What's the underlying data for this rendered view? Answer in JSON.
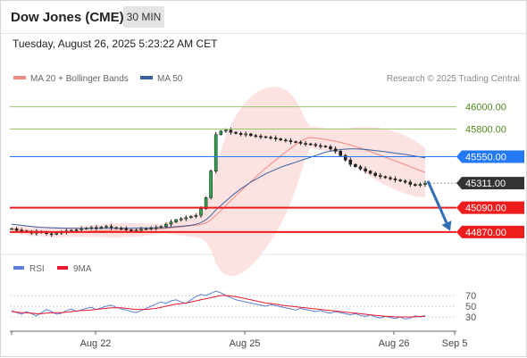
{
  "header": {
    "title": "Dow Jones (CME)",
    "timeframe": "30 MIN",
    "datetime": "Tuesday, August 26, 2025 5:23:22 AM CET"
  },
  "legend": {
    "items": [
      {
        "label": "MA 20 + Bollinger Bands",
        "color": "#f08a80"
      },
      {
        "label": "MA 50",
        "color": "#3a5fa0"
      }
    ],
    "credit": "Research © 2025 Trading Central"
  },
  "chart_data": [
    {
      "type": "candlestick",
      "title": "",
      "ylim": [
        44700,
        46150
      ],
      "x_ticks": [
        "Aug 22",
        "Aug 25",
        "Aug 26",
        "Sep 5"
      ],
      "levels": [
        {
          "value": 46000,
          "label": "46000.00",
          "style": "green-line",
          "color": "#9bc66a"
        },
        {
          "value": 45800,
          "label": "45800.00",
          "style": "green-line",
          "color": "#9bc66a"
        },
        {
          "value": 45550,
          "label": "45550.00",
          "style": "blue-badge",
          "color": "#2378f5"
        },
        {
          "value": 45311,
          "label": "45311.00",
          "style": "dark-badge",
          "color": "#333333"
        },
        {
          "value": 45090,
          "label": "45090.00",
          "style": "red-badge",
          "color": "#ee1c1c"
        },
        {
          "value": 44870,
          "label": "44870.00",
          "style": "red-badge",
          "color": "#ee1c1c"
        }
      ],
      "close_series": [
        44900,
        44885,
        44880,
        44870,
        44860,
        44875,
        44865,
        44855,
        44850,
        44860,
        44870,
        44880,
        44885,
        44890,
        44900,
        44905,
        44910,
        44905,
        44915,
        44920,
        44910,
        44905,
        44900,
        44890,
        44880,
        44885,
        44895,
        44900,
        44905,
        44910,
        44920,
        44940,
        44960,
        44980,
        44990,
        45000,
        45010,
        45020,
        45080,
        45180,
        45420,
        45750,
        45780,
        45790,
        45770,
        45760,
        45750,
        45755,
        45740,
        45735,
        45730,
        45725,
        45720,
        45710,
        45700,
        45695,
        45685,
        45680,
        45670,
        45665,
        45660,
        45650,
        45645,
        45640,
        45620,
        45600,
        45560,
        45520,
        45480,
        45460,
        45440,
        45420,
        45400,
        45380,
        45370,
        45360,
        45350,
        45340,
        45330,
        45320,
        45300,
        45290,
        45300,
        45311
      ],
      "ma50": [
        44940,
        44935,
        44930,
        44925,
        44920,
        44915,
        44912,
        44910,
        44908,
        44906,
        44905,
        44904,
        44903,
        44903,
        44902,
        44902,
        44902,
        44902,
        44902,
        44903,
        44903,
        44904,
        44904,
        44905,
        44905,
        44906,
        44906,
        44907,
        44908,
        44909,
        44910,
        44912,
        44915,
        44918,
        44922,
        44926,
        44932,
        44940,
        44955,
        44980,
        45020,
        45070,
        45110,
        45150,
        45190,
        45225,
        45260,
        45290,
        45320,
        45345,
        45370,
        45395,
        45415,
        45435,
        45455,
        45470,
        45485,
        45500,
        45515,
        45530,
        45545,
        45560,
        45575,
        45590,
        45600,
        45608,
        45614,
        45618,
        45620,
        45620,
        45618,
        45615,
        45610,
        45605,
        45600,
        45594,
        45588,
        45582,
        45576,
        45570,
        45562,
        45555,
        45548,
        45540
      ],
      "annotation": {
        "type": "forecast-arrow",
        "from_value": 45330,
        "to_value": 44880,
        "color": "#2f6db5"
      }
    },
    {
      "type": "line",
      "title": "",
      "ylim": [
        0,
        100
      ],
      "y_ticks": [
        30,
        50,
        70
      ],
      "series": [
        {
          "name": "RSI",
          "color": "#5b7fd8",
          "values": [
            42,
            38,
            35,
            40,
            36,
            32,
            38,
            44,
            40,
            35,
            37,
            42,
            45,
            40,
            43,
            46,
            48,
            44,
            47,
            50,
            52,
            48,
            45,
            43,
            40,
            38,
            42,
            46,
            50,
            54,
            58,
            55,
            60,
            62,
            58,
            55,
            62,
            68,
            72,
            70,
            74,
            78,
            75,
            70,
            66,
            62,
            60,
            58,
            56,
            54,
            52,
            50,
            53,
            51,
            49,
            47,
            45,
            43,
            46,
            44,
            42,
            40,
            42,
            39,
            37,
            40,
            38,
            36,
            34,
            36,
            33,
            31,
            34,
            30,
            28,
            31,
            29,
            27,
            30,
            26,
            28,
            32,
            30,
            33
          ]
        },
        {
          "name": "9MA",
          "color": "#e8192c",
          "values": [
            40,
            39,
            38,
            38,
            37,
            36,
            36,
            37,
            38,
            38,
            38,
            39,
            40,
            41,
            42,
            42,
            43,
            44,
            45,
            46,
            47,
            47,
            47,
            46,
            45,
            44,
            44,
            44,
            45,
            46,
            48,
            50,
            52,
            54,
            55,
            56,
            58,
            60,
            62,
            64,
            66,
            68,
            70,
            70,
            69,
            68,
            66,
            64,
            62,
            60,
            58,
            56,
            55,
            54,
            52,
            51,
            50,
            49,
            48,
            47,
            46,
            45,
            44,
            43,
            42,
            41,
            40,
            39,
            38,
            37,
            36,
            35,
            34,
            33,
            32,
            31,
            31,
            30,
            30,
            30,
            30,
            30,
            31,
            31
          ]
        }
      ]
    }
  ]
}
